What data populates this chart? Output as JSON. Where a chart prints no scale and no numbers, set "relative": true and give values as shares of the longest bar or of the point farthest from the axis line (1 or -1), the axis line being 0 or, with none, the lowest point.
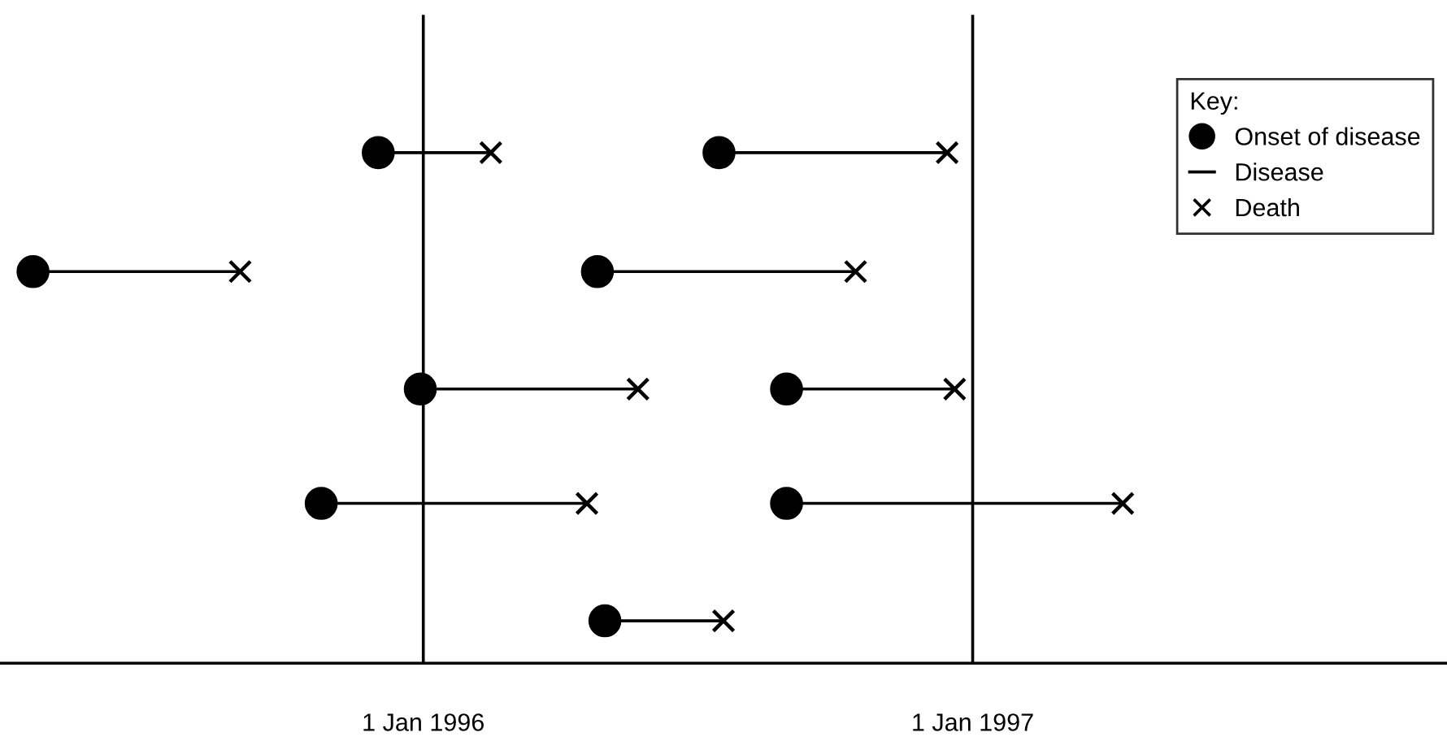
{
  "chart_data": {
    "type": "scatter",
    "relative": true,
    "legend_title": "Key:",
    "legend": "top right",
    "grid": false,
    "xlim": [
      "1995-03-25",
      "1997-11-13"
    ],
    "xticks": [
      {
        "value": "1996-01-01",
        "label": "1 Jan 1996"
      },
      {
        "value": "1997-01-01",
        "label": "1 Jan 1997"
      }
    ],
    "ref_lines": [
      {
        "axis": "x",
        "value": "1996-01-01",
        "label": null,
        "color": "#000000"
      },
      {
        "axis": "x",
        "value": "1997-01-01",
        "label": null,
        "color": "#000000"
      }
    ],
    "series": [
      {
        "name": "Onset of disease",
        "marker": "circle",
        "color": "#000000",
        "x": [
          "1995-12-02",
          "1996-07-16",
          "1995-04-16",
          "1996-04-26",
          "1995-12-30",
          "1996-08-30",
          "1995-10-25",
          "1996-08-30",
          "1996-05-01"
        ],
        "values": [
          1,
          1,
          0.767,
          0.767,
          0.537,
          0.537,
          0.313,
          0.313,
          0.083
        ]
      },
      {
        "name": "Disease",
        "type": "line",
        "marker": "none",
        "line_style": "solid",
        "color": "#000000",
        "x": [
          "1995-12-02",
          "1996-02-15",
          null,
          "1996-07-16",
          "1996-12-15",
          null,
          "1995-04-16",
          "1995-09-01",
          null,
          "1996-04-26",
          "1996-10-15",
          null,
          "1995-12-30",
          "1996-05-23",
          null,
          "1996-08-30",
          "1996-12-20",
          null,
          "1995-10-25",
          "1996-04-19",
          null,
          "1996-08-30",
          "1997-04-11",
          null,
          "1996-05-01",
          "1996-07-19"
        ],
        "values": [
          1,
          1,
          null,
          1,
          1,
          null,
          0.767,
          0.767,
          null,
          0.767,
          0.767,
          null,
          0.537,
          0.537,
          null,
          0.537,
          0.537,
          null,
          0.313,
          0.313,
          null,
          0.313,
          0.313,
          null,
          0.083,
          0.083
        ]
      },
      {
        "name": "Death",
        "marker": "cross",
        "color": "#000000",
        "x": [
          "1996-02-15",
          "1996-12-15",
          "1995-09-01",
          "1996-10-15",
          "1996-05-23",
          "1996-12-20",
          "1996-04-19",
          "1997-04-11",
          "1996-07-19"
        ],
        "values": [
          1,
          1,
          0.767,
          0.767,
          0.537,
          0.537,
          0.313,
          0.313,
          0.083
        ]
      }
    ]
  }
}
